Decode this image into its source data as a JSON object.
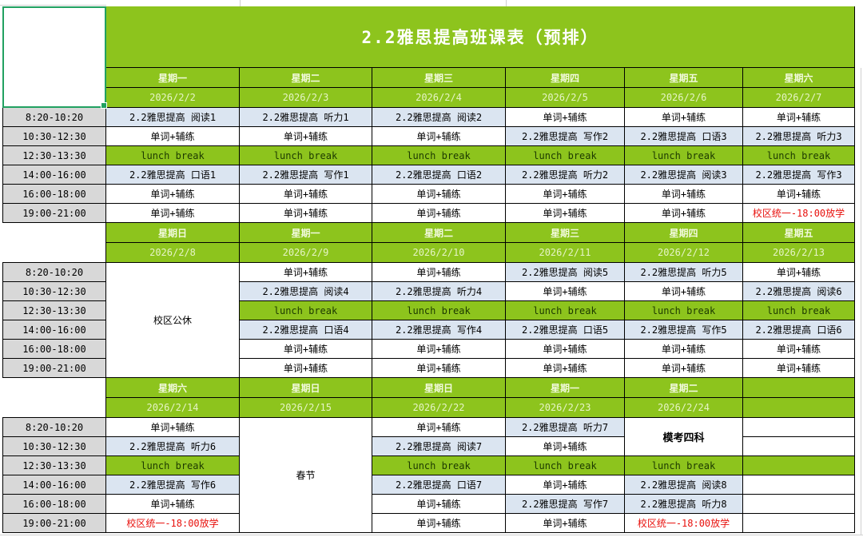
{
  "sheet": {
    "title": "2.2雅思提高班课表（预排）"
  },
  "colors": {
    "green": "#8dc41d",
    "light_blue": "#dbe5f1",
    "gray": "#d8d8d8",
    "red": "#e8100c",
    "selection": "#21a161"
  },
  "times": [
    "8:20-10:20",
    "10:30-12:30",
    "12:30-13:30",
    "14:00-16:00",
    "16:00-18:00",
    "19:00-21:00"
  ],
  "weeks": [
    {
      "days": [
        "星期一",
        "星期二",
        "星期三",
        "星期四",
        "星期五",
        "星期六"
      ],
      "dates": [
        "2026/2/2",
        "2026/2/3",
        "2026/2/4",
        "2026/2/5",
        "2026/2/6",
        "2026/2/7"
      ],
      "grid": [
        [
          {
            "t": "2.2雅思提高 阅读1",
            "k": "class"
          },
          {
            "t": "2.2雅思提高 听力1",
            "k": "class"
          },
          {
            "t": "2.2雅思提高 阅读2",
            "k": "class"
          },
          {
            "t": "单词+辅练",
            "k": "word"
          },
          {
            "t": "单词+辅练",
            "k": "word"
          },
          {
            "t": "单词+辅练",
            "k": "word"
          }
        ],
        [
          {
            "t": "单词+辅练",
            "k": "word"
          },
          {
            "t": "单词+辅练",
            "k": "word"
          },
          {
            "t": "单词+辅练",
            "k": "word"
          },
          {
            "t": "2.2雅思提高 写作2",
            "k": "class"
          },
          {
            "t": "2.2雅思提高 口语3",
            "k": "class"
          },
          {
            "t": "2.2雅思提高 听力3",
            "k": "class"
          }
        ],
        [
          {
            "t": "lunch break",
            "k": "lunch"
          },
          {
            "t": "lunch break",
            "k": "lunch"
          },
          {
            "t": "lunch break",
            "k": "lunch"
          },
          {
            "t": "lunch break",
            "k": "lunch"
          },
          {
            "t": "lunch break",
            "k": "lunch"
          },
          {
            "t": "lunch break",
            "k": "lunch"
          }
        ],
        [
          {
            "t": "2.2雅思提高 口语1",
            "k": "class"
          },
          {
            "t": "2.2雅思提高 写作1",
            "k": "class"
          },
          {
            "t": "2.2雅思提高 口语2",
            "k": "class"
          },
          {
            "t": "2.2雅思提高 听力2",
            "k": "class"
          },
          {
            "t": "2.2雅思提高 阅读3",
            "k": "class"
          },
          {
            "t": "2.2雅思提高 写作3",
            "k": "class"
          }
        ],
        [
          {
            "t": "单词+辅练",
            "k": "word"
          },
          {
            "t": "单词+辅练",
            "k": "word"
          },
          {
            "t": "单词+辅练",
            "k": "word"
          },
          {
            "t": "单词+辅练",
            "k": "word"
          },
          {
            "t": "单词+辅练",
            "k": "word"
          },
          {
            "t": "单词+辅练",
            "k": "word"
          }
        ],
        [
          {
            "t": "单词+辅练",
            "k": "word"
          },
          {
            "t": "单词+辅练",
            "k": "word"
          },
          {
            "t": "单词+辅练",
            "k": "word"
          },
          {
            "t": "单词+辅练",
            "k": "word"
          },
          {
            "t": "单词+辅练",
            "k": "word"
          },
          {
            "t": "校区统一-18:00放学",
            "k": "notice"
          }
        ]
      ]
    },
    {
      "days": [
        "星期日",
        "星期一",
        "星期二",
        "星期三",
        "星期四",
        "星期五"
      ],
      "dates": [
        "2026/2/8",
        "2026/2/9",
        "2026/2/10",
        "2026/2/11",
        "2026/2/12",
        "2026/2/13"
      ],
      "grid": [
        [
          {
            "t": "校区公休",
            "k": "rest",
            "rs": 6
          },
          {
            "t": "单词+辅练",
            "k": "word"
          },
          {
            "t": "单词+辅练",
            "k": "word"
          },
          {
            "t": "2.2雅思提高 阅读5",
            "k": "class"
          },
          {
            "t": "2.2雅思提高 听力5",
            "k": "class"
          },
          {
            "t": "单词+辅练",
            "k": "word"
          }
        ],
        [
          null,
          {
            "t": "2.2雅思提高 阅读4",
            "k": "class"
          },
          {
            "t": "2.2雅思提高 听力4",
            "k": "class"
          },
          {
            "t": "单词+辅练",
            "k": "word"
          },
          {
            "t": "单词+辅练",
            "k": "word"
          },
          {
            "t": "2.2雅思提高 阅读6",
            "k": "class"
          }
        ],
        [
          null,
          {
            "t": "lunch break",
            "k": "lunch"
          },
          {
            "t": "lunch break",
            "k": "lunch"
          },
          {
            "t": "lunch break",
            "k": "lunch"
          },
          {
            "t": "lunch break",
            "k": "lunch"
          },
          {
            "t": "lunch break",
            "k": "lunch"
          }
        ],
        [
          null,
          {
            "t": "2.2雅思提高 口语4",
            "k": "class"
          },
          {
            "t": "2.2雅思提高 写作4",
            "k": "class"
          },
          {
            "t": "2.2雅思提高 口语5",
            "k": "class"
          },
          {
            "t": "2.2雅思提高 写作5",
            "k": "class"
          },
          {
            "t": "2.2雅思提高 口语6",
            "k": "class"
          }
        ],
        [
          null,
          {
            "t": "单词+辅练",
            "k": "word"
          },
          {
            "t": "单词+辅练",
            "k": "word"
          },
          {
            "t": "单词+辅练",
            "k": "word"
          },
          {
            "t": "单词+辅练",
            "k": "word"
          },
          {
            "t": "单词+辅练",
            "k": "word"
          }
        ],
        [
          null,
          {
            "t": "单词+辅练",
            "k": "word"
          },
          {
            "t": "单词+辅练",
            "k": "word"
          },
          {
            "t": "单词+辅练",
            "k": "word"
          },
          {
            "t": "单词+辅练",
            "k": "word"
          },
          {
            "t": "单词+辅练",
            "k": "word"
          }
        ]
      ]
    },
    {
      "days": [
        "星期六",
        "星期日",
        "星期日",
        "星期一",
        "星期二",
        ""
      ],
      "dates": [
        "2026/2/14",
        "2026/2/15",
        "2026/2/22",
        "2026/2/23",
        "2026/2/24",
        ""
      ],
      "grid": [
        [
          {
            "t": "单词+辅练",
            "k": "word"
          },
          {
            "t": "春节",
            "k": "holiday",
            "rs": 6
          },
          {
            "t": "单词+辅练",
            "k": "word"
          },
          {
            "t": "2.2雅思提高 听力7",
            "k": "class"
          },
          {
            "t": "模考四科",
            "k": "mock",
            "rs": 2
          },
          {
            "t": "",
            "k": "empty"
          }
        ],
        [
          {
            "t": "2.2雅思提高 听力6",
            "k": "class"
          },
          null,
          {
            "t": "2.2雅思提高 阅读7",
            "k": "class"
          },
          {
            "t": "单词+辅练",
            "k": "word"
          },
          null,
          {
            "t": "",
            "k": "empty"
          }
        ],
        [
          {
            "t": "lunch break",
            "k": "lunch"
          },
          null,
          {
            "t": "lunch break",
            "k": "lunch"
          },
          {
            "t": "lunch break",
            "k": "lunch"
          },
          {
            "t": "lunch break",
            "k": "lunch"
          },
          {
            "t": "",
            "k": "empty_green"
          }
        ],
        [
          {
            "t": "2.2雅思提高 写作6",
            "k": "class"
          },
          null,
          {
            "t": "2.2雅思提高 口语7",
            "k": "class"
          },
          {
            "t": "单词+辅练",
            "k": "word"
          },
          {
            "t": "2.2雅思提高 阅读8",
            "k": "class"
          },
          {
            "t": "",
            "k": "empty"
          }
        ],
        [
          {
            "t": "单词+辅练",
            "k": "word"
          },
          null,
          {
            "t": "单词+辅练",
            "k": "word"
          },
          {
            "t": "2.2雅思提高 写作7",
            "k": "class"
          },
          {
            "t": "2.2雅思提高 听力8",
            "k": "class"
          },
          {
            "t": "",
            "k": "empty"
          }
        ],
        [
          {
            "t": "校区统一-18:00放学",
            "k": "notice"
          },
          null,
          {
            "t": "单词+辅练",
            "k": "word"
          },
          {
            "t": "单词+辅练",
            "k": "word"
          },
          {
            "t": "校区统一-18:00放学",
            "k": "notice"
          },
          {
            "t": "",
            "k": "empty"
          }
        ]
      ]
    }
  ]
}
